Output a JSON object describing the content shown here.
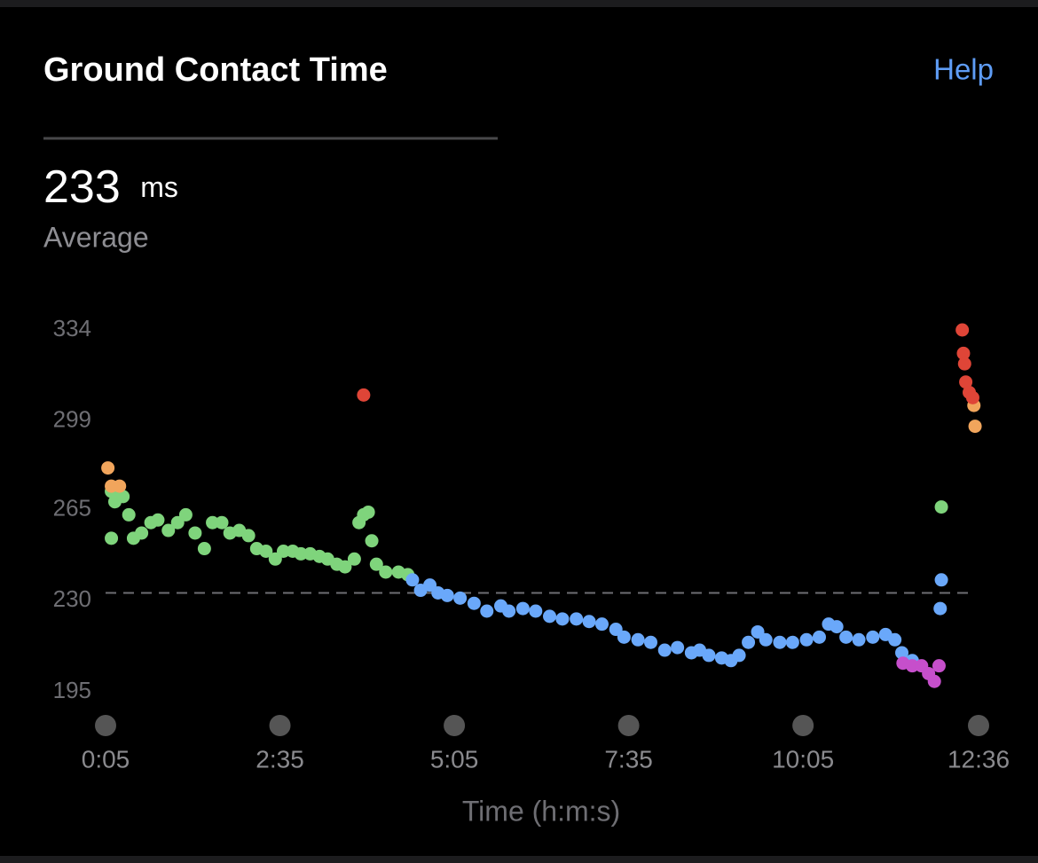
{
  "chart_data": {
    "type": "scatter",
    "title": "Ground Contact Time",
    "help": "Help",
    "average": {
      "value": 233,
      "unit": "ms",
      "label": "Average"
    },
    "xlabel": "Time (h:m:s)",
    "xlim": [
      5,
      756
    ],
    "ylim": [
      195,
      334
    ],
    "xticks": [
      {
        "value": 5,
        "label": "0:05"
      },
      {
        "value": 155,
        "label": "2:35"
      },
      {
        "value": 305,
        "label": "5:05"
      },
      {
        "value": 455,
        "label": "7:35"
      },
      {
        "value": 605,
        "label": "10:05"
      },
      {
        "value": 756,
        "label": "12:36"
      }
    ],
    "yticks": [
      334,
      299,
      265,
      230,
      195
    ],
    "series": [
      {
        "color": "#7fd47c",
        "x": [
          10,
          10,
          13,
          20,
          25,
          29,
          36,
          44,
          50,
          59,
          67,
          74,
          82,
          90,
          97,
          105,
          112,
          120,
          128,
          135,
          143,
          151,
          158,
          166,
          173,
          181,
          189,
          196,
          204,
          211,
          219,
          223,
          227,
          231,
          234,
          238,
          246,
          257,
          265,
          724
        ],
        "values": [
          272,
          254,
          268,
          270,
          263,
          254,
          256,
          260,
          261,
          257,
          260,
          263,
          256,
          250,
          260,
          260,
          256,
          257,
          255,
          250,
          249,
          246,
          249,
          249,
          248,
          248,
          247,
          246,
          244,
          243,
          246,
          260,
          263,
          264,
          253,
          244,
          241,
          241,
          240,
          266
        ]
      },
      {
        "color": "#6aa8fa",
        "x": [
          269,
          276,
          284,
          291,
          299,
          310,
          322,
          333,
          345,
          352,
          364,
          375,
          387,
          398,
          410,
          421,
          432,
          444,
          451,
          463,
          474,
          486,
          497,
          509,
          516,
          524,
          535,
          543,
          550,
          558,
          566,
          573,
          585,
          596,
          608,
          619,
          627,
          634,
          642,
          653,
          665,
          676,
          684,
          690,
          699,
          723,
          724
        ],
        "values": [
          238,
          234,
          236,
          233,
          232,
          231,
          229,
          226,
          228,
          226,
          227,
          226,
          224,
          223,
          223,
          222,
          221,
          219,
          216,
          215,
          214,
          211,
          212,
          210,
          211,
          209,
          208,
          207,
          209,
          214,
          218,
          215,
          214,
          214,
          215,
          216,
          221,
          220,
          216,
          215,
          216,
          217,
          215,
          210,
          207,
          227,
          238
        ]
      },
      {
        "color": "#c64fcb",
        "x": [
          691,
          699,
          707,
          713,
          718,
          722
        ],
        "values": [
          206,
          205,
          205,
          202,
          199,
          205
        ]
      },
      {
        "color": "#f1a55c",
        "x": [
          7,
          10,
          17,
          752,
          753
        ],
        "values": [
          281,
          274,
          274,
          305,
          297
        ]
      },
      {
        "color": "#df4537",
        "x": [
          227,
          742,
          743,
          744,
          745,
          748,
          751
        ],
        "values": [
          309,
          334,
          325,
          321,
          314,
          310,
          308
        ]
      }
    ]
  }
}
